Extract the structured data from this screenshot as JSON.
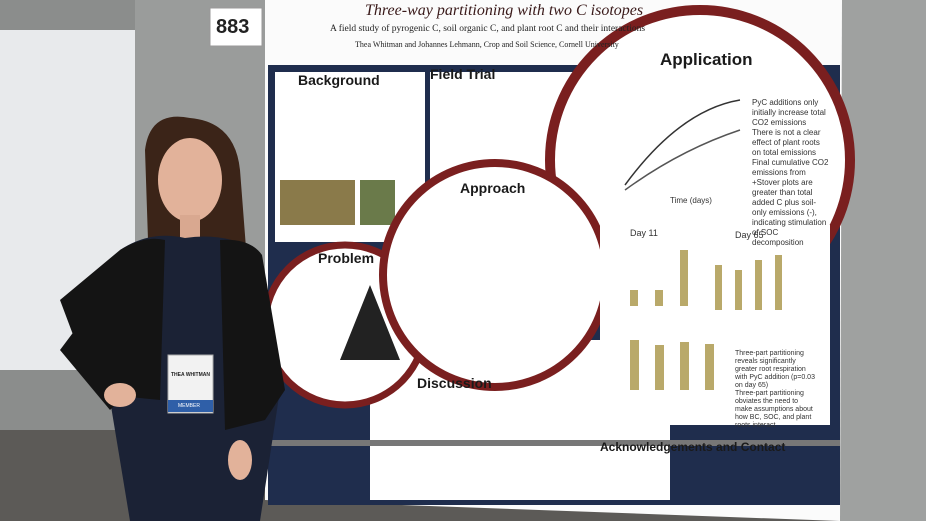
{
  "sign_number": "883",
  "poster": {
    "title": "Three-way partitioning with two C isotopes",
    "subtitle": "A field study of pyrogenic C, soil organic C, and plant root C and their interactions",
    "authors": "Thea Whitman and Johannes Lehmann, Crop and Soil Science, Cornell University",
    "sections": {
      "background": "Background",
      "field_trial": "Field Trial",
      "application": "Application",
      "approach": "Approach",
      "problem": "Problem",
      "discussion": "Discussion",
      "acknowledgements": "Acknowledgements and Contact"
    },
    "application_bullets": [
      "PyC additions only initially increase total CO2 emissions",
      "There is not a clear effect of plant roots on total emissions",
      "Final cumulative CO2 emissions from +Stover plots are greater than total added C plus soil-only emissions (-), indicating stimulation of SOC decomposition"
    ],
    "chart_labels": {
      "time": "Time (days)",
      "day_11": "Day 11",
      "day_65": "Day 65"
    },
    "results_bullets": [
      "Three-part partitioning reveals significantly greater root respiration with PyC addition (p=0.03 on day 65)",
      "Three-part partitioning obviates the need to make assumptions about how BC, SOC, and plant roots interact"
    ]
  },
  "badge": {
    "name": "THEA WHITMAN",
    "type": "MEMBER"
  }
}
